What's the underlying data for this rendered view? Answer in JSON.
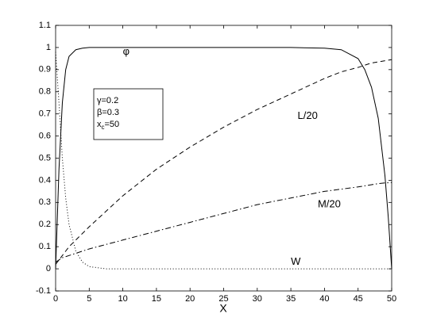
{
  "chart_data": {
    "type": "line",
    "xlabel": "X",
    "x": [
      0,
      0.5,
      1,
      1.5,
      2,
      3,
      4,
      5,
      7.5,
      10,
      15,
      20,
      25,
      30,
      35,
      40,
      42.5,
      45,
      46,
      47,
      48,
      49,
      49.5,
      50
    ],
    "series": [
      {
        "name": "φ",
        "color": "#000000",
        "style": "solid",
        "values": [
          0,
          0.45,
          0.75,
          0.9,
          0.96,
          0.99,
          0.997,
          1,
          1,
          1,
          1,
          1,
          1,
          1,
          1,
          0.997,
          0.99,
          0.95,
          0.9,
          0.82,
          0.68,
          0.42,
          0.23,
          0
        ]
      },
      {
        "name": "L/20",
        "color": "#000000",
        "style": "dashed",
        "values": [
          0.02,
          0.04,
          0.06,
          0.08,
          0.1,
          0.13,
          0.16,
          0.19,
          0.26,
          0.33,
          0.45,
          0.55,
          0.64,
          0.72,
          0.79,
          0.86,
          0.89,
          0.91,
          0.92,
          0.93,
          0.935,
          0.94,
          0.943,
          0.945
        ]
      },
      {
        "name": "M/20",
        "color": "#000000",
        "style": "dashdot",
        "values": [
          0.03,
          0.04,
          0.05,
          0.055,
          0.06,
          0.07,
          0.08,
          0.09,
          0.11,
          0.13,
          0.17,
          0.21,
          0.25,
          0.29,
          0.32,
          0.35,
          0.36,
          0.37,
          0.375,
          0.38,
          0.385,
          0.388,
          0.389,
          0.39
        ]
      },
      {
        "name": "W",
        "color": "#000000",
        "style": "dotted",
        "values": [
          0.98,
          0.75,
          0.5,
          0.32,
          0.2,
          0.08,
          0.03,
          0.01,
          0,
          0,
          0,
          0,
          0,
          0,
          0,
          0,
          0,
          0,
          0,
          0,
          0,
          0,
          0,
          0
        ]
      }
    ],
    "parameters": [
      {
        "symbol": "γ",
        "text": "=0.2"
      },
      {
        "symbol": "β",
        "text": "=0.3"
      },
      {
        "symbol": "x",
        "subscript": "c",
        "text": "=50"
      }
    ],
    "xlim": [
      0,
      50
    ],
    "xticks": [
      0,
      5,
      10,
      15,
      20,
      25,
      30,
      35,
      40,
      45,
      50
    ],
    "ylim": [
      -0.1,
      1.1
    ],
    "yticks": [
      -0.1,
      0,
      0.1,
      0.2,
      0.3,
      0.4,
      0.5,
      0.6,
      0.7,
      0.8,
      0.9,
      1,
      1.1
    ],
    "grid": false
  }
}
